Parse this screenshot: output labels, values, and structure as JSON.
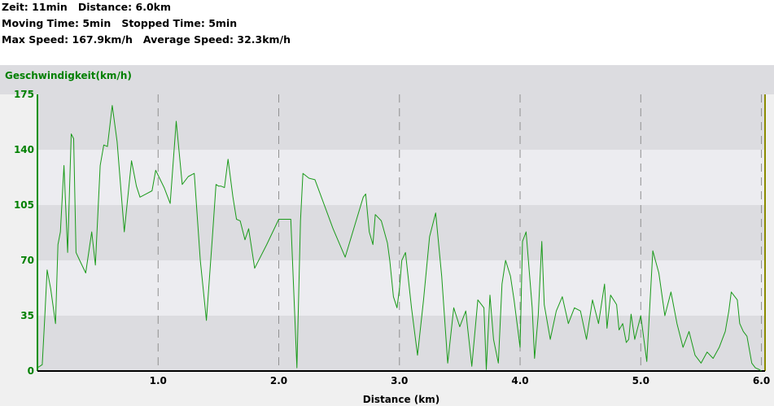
{
  "summary": {
    "zeit_label": "Zeit:",
    "zeit_value": "11min",
    "distance_label": "Distance:",
    "distance_value": "6.0km",
    "moving_label": "Moving Time:",
    "moving_value": "5min",
    "stopped_label": "Stopped Time:",
    "stopped_value": "5min",
    "maxspeed_label": "Max Speed:",
    "maxspeed_value": "167.9km/h",
    "avgspeed_label": "Average Speed:",
    "avgspeed_value": "32.3km/h"
  },
  "colors": {
    "line": "#1a9a1a",
    "axis_left": "#009000",
    "axis_right": "#8b8b00",
    "band_dark": "#dcdce0",
    "band_light": "#ececf0"
  },
  "chart_data": {
    "type": "line",
    "title": "",
    "ylabel": "Geschwindigkeit(km/h)",
    "xlabel": "Distance (km)",
    "ylim": [
      0,
      175
    ],
    "xlim": [
      0,
      6.03
    ],
    "y_ticks": [
      0,
      35,
      70,
      105,
      140,
      175
    ],
    "x_ticks": [
      1.0,
      2.0,
      3.0,
      4.0,
      5.0,
      6.0
    ],
    "x_tick_labels": [
      "1.0",
      "2.0",
      "3.0",
      "4.0",
      "5.0",
      "6.0"
    ],
    "grid": "vertical dashed lines at x ticks; alternating horizontal bands",
    "series": [
      {
        "name": "Geschwindigkeit(km/h)",
        "x": [
          0.0,
          0.04,
          0.06,
          0.08,
          0.11,
          0.15,
          0.17,
          0.19,
          0.22,
          0.25,
          0.28,
          0.3,
          0.32,
          0.35,
          0.4,
          0.45,
          0.48,
          0.52,
          0.55,
          0.58,
          0.62,
          0.66,
          0.72,
          0.78,
          0.8,
          0.82,
          0.85,
          0.9,
          0.95,
          0.98,
          1.05,
          1.1,
          1.15,
          1.2,
          1.25,
          1.3,
          1.35,
          1.4,
          1.45,
          1.48,
          1.5,
          1.52,
          1.55,
          1.58,
          1.62,
          1.65,
          1.68,
          1.72,
          1.75,
          1.8,
          1.9,
          2.0,
          2.02,
          2.04,
          2.06,
          2.1,
          2.15,
          2.18,
          2.2,
          2.25,
          2.3,
          2.45,
          2.55,
          2.7,
          2.72,
          2.75,
          2.78,
          2.8,
          2.85,
          2.9,
          2.92,
          2.95,
          2.98,
          3.0,
          3.02,
          3.05,
          3.1,
          3.15,
          3.2,
          3.25,
          3.3,
          3.35,
          3.4,
          3.45,
          3.5,
          3.55,
          3.6,
          3.65,
          3.7,
          3.72,
          3.75,
          3.78,
          3.82,
          3.85,
          3.88,
          3.92,
          3.95,
          4.0,
          4.02,
          4.05,
          4.1,
          4.12,
          4.15,
          4.18,
          4.2,
          4.25,
          4.3,
          4.35,
          4.4,
          4.45,
          4.5,
          4.55,
          4.6,
          4.65,
          4.7,
          4.72,
          4.75,
          4.8,
          4.82,
          4.85,
          4.88,
          4.9,
          4.92,
          4.95,
          5.0,
          5.05,
          5.1,
          5.15,
          5.2,
          5.25,
          5.3,
          5.35,
          5.4,
          5.45,
          5.5,
          5.55,
          5.6,
          5.65,
          5.7,
          5.73,
          5.75,
          5.8,
          5.82,
          5.85,
          5.88,
          5.92,
          5.95,
          5.98,
          6.0
        ],
        "values": [
          2,
          4,
          33,
          64,
          52,
          30,
          80,
          88,
          130,
          75,
          150,
          147,
          75,
          70,
          62,
          88,
          67,
          130,
          143,
          142,
          168,
          145,
          88,
          133,
          125,
          117,
          110,
          112,
          114,
          127,
          116,
          106,
          158,
          118,
          123,
          125,
          70,
          32,
          85,
          118,
          117,
          117,
          116,
          134,
          110,
          96,
          95,
          83,
          90,
          65,
          80,
          96,
          96,
          96,
          96,
          96,
          2,
          95,
          125,
          122,
          121,
          90,
          72,
          110,
          112,
          88,
          80,
          99,
          95,
          81,
          70,
          47,
          40,
          52,
          70,
          75,
          40,
          10,
          45,
          85,
          100,
          60,
          5,
          40,
          28,
          38,
          3,
          45,
          40,
          1,
          48,
          20,
          5,
          55,
          70,
          60,
          45,
          15,
          82,
          88,
          40,
          8,
          35,
          82,
          42,
          20,
          38,
          47,
          30,
          40,
          38,
          20,
          45,
          30,
          55,
          27,
          48,
          42,
          26,
          30,
          18,
          20,
          36,
          20,
          35,
          6,
          76,
          62,
          35,
          50,
          30,
          15,
          25,
          10,
          5,
          12,
          8,
          15,
          25,
          38,
          50,
          45,
          30,
          25,
          22,
          5,
          2,
          1,
          0
        ]
      }
    ]
  }
}
